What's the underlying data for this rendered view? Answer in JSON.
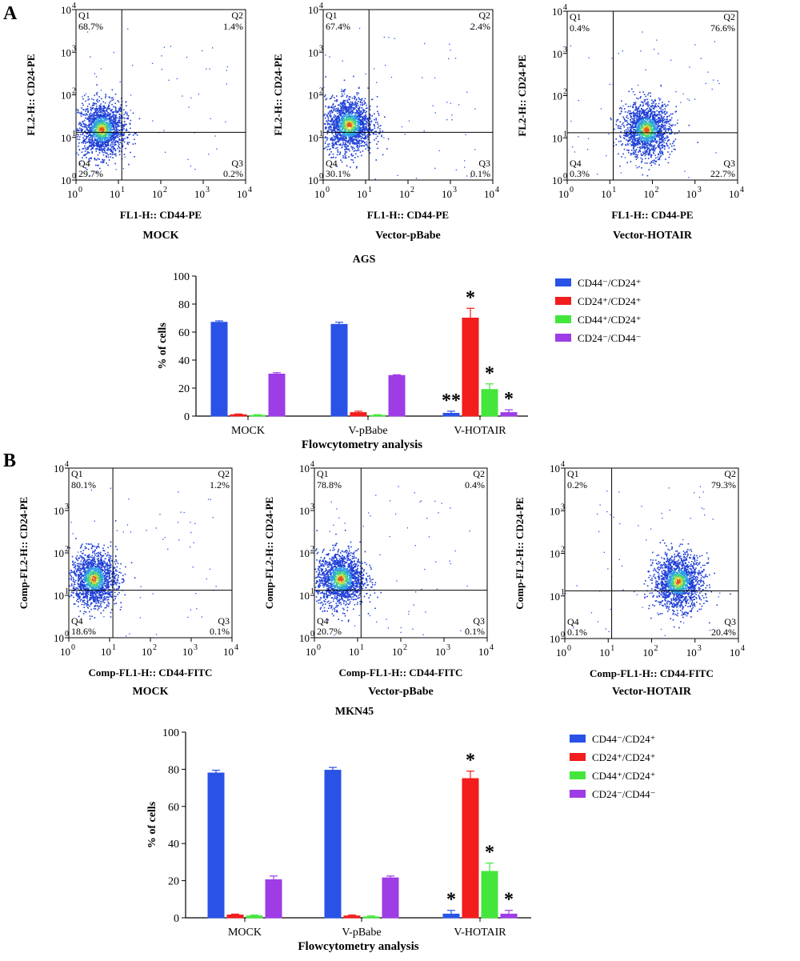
{
  "panels": [
    {
      "letter": "A",
      "cell_line": "AGS",
      "scatter": [
        {
          "caption": "MOCK",
          "xlabel": "FL1-H:: CD44-PE",
          "ylabel": "FL2-H:: CD24-PE",
          "quadrants": {
            "Q1": "68.7%",
            "Q2": "1.4%",
            "Q3": "0.2%",
            "Q4": "29.7%"
          },
          "cluster": [
            0.6,
            1.2
          ]
        },
        {
          "caption": "Vector-pBabe",
          "xlabel": "FL1-H:: CD44-PE",
          "ylabel": "FL2-H:: CD24-PE",
          "quadrants": {
            "Q1": "67.4%",
            "Q2": "2.4%",
            "Q3": "0.1%",
            "Q4": "30.1%"
          },
          "cluster": [
            0.6,
            1.3
          ]
        },
        {
          "caption": "Vector-HOTAIR",
          "xlabel": "FL1-H:: CD44-PE",
          "ylabel": "FL2-H:: CD24-PE",
          "quadrants": {
            "Q1": "0.4%",
            "Q2": "76.6%",
            "Q3": "22.7%",
            "Q4": "0.3%"
          },
          "cluster": [
            1.85,
            1.2
          ]
        }
      ],
      "bar": {
        "type": "bar",
        "categories": [
          "MOCK",
          "V-pBabe",
          "V-HOTAIR"
        ],
        "xlabel": "Flowcytometry analysis",
        "ylabel": "% of cells",
        "ylim": [
          0,
          100
        ],
        "yticks": [
          0,
          20,
          40,
          60,
          80,
          100
        ],
        "series": [
          {
            "name": "CD44⁻/CD24⁺",
            "color": "#2a52e6",
            "values": [
              67,
              65.5,
              2
            ],
            "errors": [
              1,
              1.5,
              1.5
            ]
          },
          {
            "name": "CD24⁺/CD24⁺",
            "color": "#f21d1d",
            "values": [
              1,
              2.5,
              70
            ],
            "errors": [
              0.5,
              1,
              7
            ]
          },
          {
            "name": "CD44⁺/CD24⁺",
            "color": "#44e63c",
            "values": [
              0.5,
              0.5,
              19
            ],
            "errors": [
              0.5,
              0.5,
              4
            ]
          },
          {
            "name": "CD24⁻/CD44⁻",
            "color": "#9e3ce6",
            "values": [
              30,
              29,
              2.5
            ],
            "errors": [
              1,
              0.5,
              2
            ]
          }
        ],
        "stars": [
          [
            "",
            "",
            "**"
          ],
          [
            "",
            "",
            "*"
          ],
          [
            "",
            "",
            "*"
          ],
          [
            "",
            "",
            "*"
          ]
        ]
      }
    },
    {
      "letter": "B",
      "cell_line": "MKN45",
      "scatter": [
        {
          "caption": "MOCK",
          "xlabel": "Comp-FL1-H:: CD44-FITC",
          "ylabel": "Comp-FL2-H:: CD24-PE",
          "quadrants": {
            "Q1": "80.1%",
            "Q2": "1.2%",
            "Q3": "0.1%",
            "Q4": "18.6%"
          },
          "cluster": [
            0.6,
            1.4
          ]
        },
        {
          "caption": "Vector-pBabe",
          "xlabel": "Comp-FL1-H:: CD44-FITC",
          "ylabel": "Comp-FL2-H:: CD24-PE",
          "quadrants": {
            "Q1": "78.8%",
            "Q2": "0.4%",
            "Q3": "0.1%",
            "Q4": "20.7%"
          },
          "cluster": [
            0.6,
            1.4
          ]
        },
        {
          "caption": "Vector-HOTAIR",
          "xlabel": "Comp-FL1-H:: CD44-FITC",
          "ylabel": "Comp-FL2-H:: CD24-PE",
          "quadrants": {
            "Q1": "0.2%",
            "Q2": "79.3%",
            "Q3": "20.4%",
            "Q4": "0.1%"
          },
          "cluster": [
            2.6,
            1.35
          ]
        }
      ],
      "bar": {
        "type": "bar",
        "categories": [
          "MOCK",
          "V-pBabe",
          "V-HOTAIR"
        ],
        "xlabel": "Flowcytometry analysis",
        "ylabel": "% of cells",
        "ylim": [
          0,
          100
        ],
        "yticks": [
          0,
          20,
          40,
          60,
          80,
          100
        ],
        "series": [
          {
            "name": "CD44⁻/CD24⁺",
            "color": "#2a52e6",
            "values": [
              78,
              79.5,
              2
            ],
            "errors": [
              1.5,
              1.5,
              2
            ]
          },
          {
            "name": "CD24⁺/CD24⁺",
            "color": "#f21d1d",
            "values": [
              1.5,
              1,
              75
            ],
            "errors": [
              0.5,
              0.5,
              4
            ]
          },
          {
            "name": "CD44⁺/CD24⁺",
            "color": "#44e63c",
            "values": [
              1,
              0.5,
              25
            ],
            "errors": [
              0.5,
              0.5,
              4.5
            ]
          },
          {
            "name": "CD24⁻/CD44⁻",
            "color": "#9e3ce6",
            "values": [
              20.5,
              21.5,
              2
            ],
            "errors": [
              2,
              1,
              2
            ]
          }
        ],
        "stars": [
          [
            "",
            "",
            "*"
          ],
          [
            "",
            "",
            "*"
          ],
          [
            "",
            "",
            "*"
          ],
          [
            "",
            "",
            "*"
          ]
        ]
      }
    }
  ],
  "chart_data": [
    {
      "type": "scatter",
      "xlabel": "FL1-H:: CD44-PE",
      "ylabel": "FL2-H:: CD24-PE",
      "xlim": [
        0,
        4
      ],
      "ylim": [
        0,
        4
      ],
      "log_axes": true,
      "quadrants": {
        "Q1": "68.7%",
        "Q2": "1.4%",
        "Q3": "0.2%",
        "Q4": "29.7%"
      }
    },
    {
      "type": "scatter",
      "xlabel": "FL1-H:: CD44-PE",
      "ylabel": "FL2-H:: CD24-PE",
      "xlim": [
        0,
        4
      ],
      "ylim": [
        0,
        4
      ],
      "log_axes": true,
      "quadrants": {
        "Q1": "67.4%",
        "Q2": "2.4%",
        "Q3": "0.1%",
        "Q4": "30.1%"
      }
    },
    {
      "type": "scatter",
      "xlabel": "FL1-H:: CD44-PE",
      "ylabel": "FL2-H:: CD24-PE",
      "xlim": [
        0,
        4
      ],
      "ylim": [
        0,
        4
      ],
      "log_axes": true,
      "quadrants": {
        "Q1": "0.4%",
        "Q2": "76.6%",
        "Q3": "22.7%",
        "Q4": "0.3%"
      }
    },
    {
      "type": "bar",
      "categories": [
        "MOCK",
        "V-pBabe",
        "V-HOTAIR"
      ],
      "xlabel": "Flowcytometry analysis",
      "ylabel": "% of cells",
      "ylim": [
        0,
        100
      ],
      "series": [
        {
          "name": "CD44⁻/CD24⁺",
          "values": [
            67,
            65.5,
            2
          ]
        },
        {
          "name": "CD24⁺/CD24⁺",
          "values": [
            1,
            2.5,
            70
          ]
        },
        {
          "name": "CD44⁺/CD24⁺",
          "values": [
            0.5,
            0.5,
            19
          ]
        },
        {
          "name": "CD24⁻/CD44⁻",
          "values": [
            30,
            29,
            2.5
          ]
        }
      ]
    },
    {
      "type": "scatter",
      "xlabel": "Comp-FL1-H:: CD44-FITC",
      "ylabel": "Comp-FL2-H:: CD24-PE",
      "xlim": [
        0,
        4
      ],
      "ylim": [
        0,
        4
      ],
      "log_axes": true,
      "quadrants": {
        "Q1": "80.1%",
        "Q2": "1.2%",
        "Q3": "0.1%",
        "Q4": "18.6%"
      }
    },
    {
      "type": "scatter",
      "xlabel": "Comp-FL1-H:: CD44-FITC",
      "ylabel": "Comp-FL2-H:: CD24-PE",
      "xlim": [
        0,
        4
      ],
      "ylim": [
        0,
        4
      ],
      "log_axes": true,
      "quadrants": {
        "Q1": "78.8%",
        "Q2": "0.4%",
        "Q3": "0.1%",
        "Q4": "20.7%"
      }
    },
    {
      "type": "scatter",
      "xlabel": "Comp-FL1-H:: CD44-FITC",
      "ylabel": "Comp-FL2-H:: CD24-PE",
      "xlim": [
        0,
        4
      ],
      "ylim": [
        0,
        4
      ],
      "log_axes": true,
      "quadrants": {
        "Q1": "0.2%",
        "Q2": "79.3%",
        "Q3": "20.4%",
        "Q4": "0.1%"
      }
    },
    {
      "type": "bar",
      "categories": [
        "MOCK",
        "V-pBabe",
        "V-HOTAIR"
      ],
      "xlabel": "Flowcytometry analysis",
      "ylabel": "% of cells",
      "ylim": [
        0,
        100
      ],
      "series": [
        {
          "name": "CD44⁻/CD24⁺",
          "values": [
            78,
            79.5,
            2
          ]
        },
        {
          "name": "CD24⁺/CD24⁺",
          "values": [
            1.5,
            1,
            75
          ]
        },
        {
          "name": "CD44⁺/CD24⁺",
          "values": [
            1,
            0.5,
            25
          ]
        },
        {
          "name": "CD24⁻/CD44⁻",
          "values": [
            20.5,
            21.5,
            2
          ]
        }
      ]
    }
  ]
}
